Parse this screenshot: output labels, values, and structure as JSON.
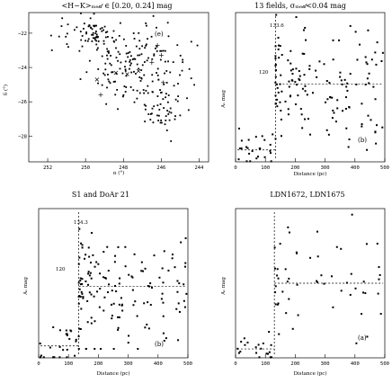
{
  "chart_data": [
    {
      "id": "map",
      "type": "scatter",
      "title": "<H−K>ₘₑ𝒹 ∈ [0.20, 0.24] mag",
      "panel_label": "(e)",
      "xlabel": "α (°)",
      "ylabel": "δ (°)",
      "x_ticks": [
        "252",
        "250",
        "248",
        "246",
        "244"
      ],
      "y_ticks": [
        "−22",
        "−24",
        "−26",
        "−28"
      ],
      "xlim": [
        253,
        243.5
      ],
      "ylim": [
        -29.5,
        -20.8
      ],
      "clouds": [
        {
          "cx": 247.3,
          "cy": -24.0,
          "sx": 1.4,
          "sy": 1.2,
          "n": 170
        },
        {
          "cx": 249.6,
          "cy": -22.0,
          "sx": 0.8,
          "sy": 0.5,
          "n": 70
        },
        {
          "cx": 246.0,
          "cy": -26.6,
          "sx": 0.5,
          "sy": 0.5,
          "n": 40
        }
      ],
      "markers": [
        {
          "x": 248.4,
          "y": -24.3,
          "symbol": "×"
        },
        {
          "x": 247.8,
          "y": -24.4,
          "symbol": "×"
        },
        {
          "x": 247.2,
          "y": -24.2,
          "symbol": "×"
        },
        {
          "x": 249.4,
          "y": -24.7,
          "symbol": "×"
        },
        {
          "x": 246.2,
          "y": -22.7,
          "symbol": "+"
        },
        {
          "x": 246.0,
          "y": -23.3,
          "symbol": "+"
        },
        {
          "x": 246.5,
          "y": -23.7,
          "symbol": "+"
        },
        {
          "x": 245.9,
          "y": -24.9,
          "symbol": "+"
        },
        {
          "x": 249.2,
          "y": -25.6,
          "symbol": "+"
        }
      ]
    },
    {
      "id": "b",
      "type": "scatter",
      "title": "13 fields, σₘₑ𝒹<0.04 mag",
      "panel_label": "(b)",
      "count_label": "133.6",
      "annotation": "120",
      "xlabel": "Distance (pc)",
      "ylabel": "Aᵥ mag",
      "x_ticks": [
        "0",
        "100",
        "200",
        "300",
        "400",
        "500"
      ],
      "xlim": [
        0,
        500
      ],
      "ylim": [
        0,
        5
      ],
      "step_at": 133.6,
      "before": {
        "mean": 0.4,
        "sd": 0.35,
        "n": 25
      },
      "after": {
        "mean": 2.6,
        "sd": 1.0,
        "n": 150
      }
    },
    {
      "id": "c",
      "type": "scatter",
      "title": "S1 and DoAr 21",
      "panel_label": "(b)",
      "count_label": "134.3",
      "annotation": "120",
      "xlabel": "Distance (pc)",
      "ylabel": "Aᵥ mag",
      "x_ticks": [
        "0",
        "100",
        "200",
        "300",
        "400",
        "500"
      ],
      "xlim": [
        0,
        500
      ],
      "ylim": [
        0,
        5
      ],
      "step_at": 134.3,
      "before": {
        "mean": 0.4,
        "sd": 0.35,
        "n": 25
      },
      "after": {
        "mean": 2.4,
        "sd": 1.0,
        "n": 150
      }
    },
    {
      "id": "d",
      "type": "scatter",
      "title": "LDN1672, LDN1675",
      "panel_label": "(a)",
      "xlabel": "Distance (pc)",
      "ylabel": "Aᵥ mag",
      "x_ticks": [
        "0",
        "100",
        "200",
        "300",
        "400",
        "500"
      ],
      "xlim": [
        0,
        500
      ],
      "ylim": [
        0,
        5
      ],
      "step_at": 130,
      "before": {
        "mean": 0.3,
        "sd": 0.3,
        "n": 20
      },
      "after": {
        "mean": 2.5,
        "sd": 0.9,
        "n": 55
      }
    }
  ]
}
